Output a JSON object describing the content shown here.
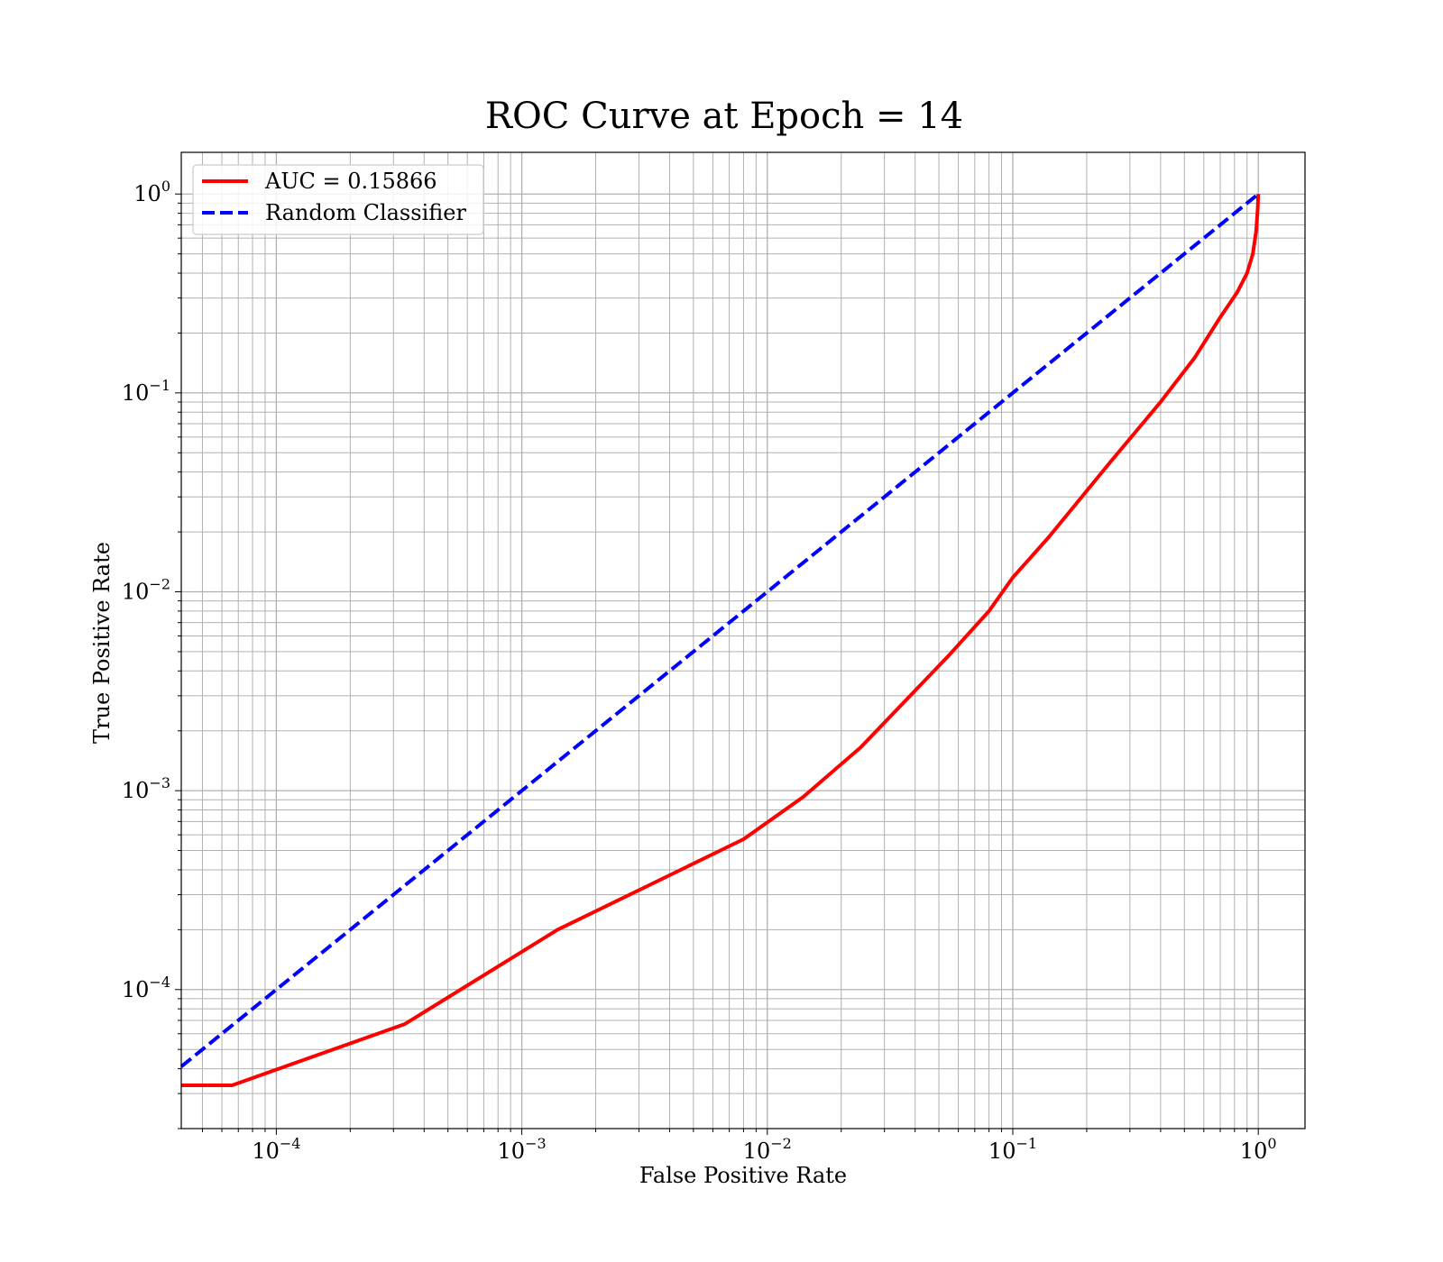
{
  "chart_data": {
    "type": "line",
    "title": "ROC Curve at Epoch = 14",
    "xlabel": "False Positive Rate",
    "ylabel": "True Positive Rate",
    "xscale": "log",
    "yscale": "log",
    "xlim": [
      4.1e-05,
      1.55
    ],
    "ylim": [
      2e-05,
      1.62
    ],
    "grid": "major and minor",
    "legend": "upper-left",
    "x_ticks": [
      {
        "mantissa": "10",
        "exp": "−4",
        "value": 0.0001
      },
      {
        "mantissa": "10",
        "exp": "−3",
        "value": 0.001
      },
      {
        "mantissa": "10",
        "exp": "−2",
        "value": 0.01
      },
      {
        "mantissa": "10",
        "exp": "−1",
        "value": 0.1
      },
      {
        "mantissa": "10",
        "exp": "0",
        "value": 1
      }
    ],
    "y_ticks": [
      {
        "mantissa": "10",
        "exp": "−4",
        "value": 0.0001
      },
      {
        "mantissa": "10",
        "exp": "−3",
        "value": 0.001
      },
      {
        "mantissa": "10",
        "exp": "−2",
        "value": 0.01
      },
      {
        "mantissa": "10",
        "exp": "−1",
        "value": 0.1
      },
      {
        "mantissa": "10",
        "exp": "0",
        "value": 1
      }
    ],
    "series": [
      {
        "name": "AUC = 0.15866",
        "color": "#ff0000",
        "style": "solid",
        "points": [
          [
            4.1e-05,
            3.3e-05
          ],
          [
            6.6e-05,
            3.3e-05
          ],
          [
            0.000333,
            6.7e-05
          ],
          [
            0.0014,
            0.0002
          ],
          [
            0.008,
            0.00057
          ],
          [
            0.014,
            0.00093
          ],
          [
            0.024,
            0.00165
          ],
          [
            0.055,
            0.0048
          ],
          [
            0.08,
            0.008
          ],
          [
            0.1,
            0.0118
          ],
          [
            0.14,
            0.0188
          ],
          [
            0.25,
            0.045
          ],
          [
            0.4,
            0.09
          ],
          [
            0.55,
            0.15
          ],
          [
            0.7,
            0.24
          ],
          [
            0.82,
            0.32
          ],
          [
            0.9,
            0.4
          ],
          [
            0.95,
            0.5
          ],
          [
            0.98,
            0.65
          ],
          [
            0.995,
            0.85
          ],
          [
            1.0,
            1.0
          ]
        ]
      },
      {
        "name": "Random Classifier",
        "color": "#0000ff",
        "style": "dashed",
        "points": [
          [
            4.1e-05,
            4.1e-05
          ],
          [
            1.0,
            1.0
          ]
        ]
      }
    ]
  }
}
